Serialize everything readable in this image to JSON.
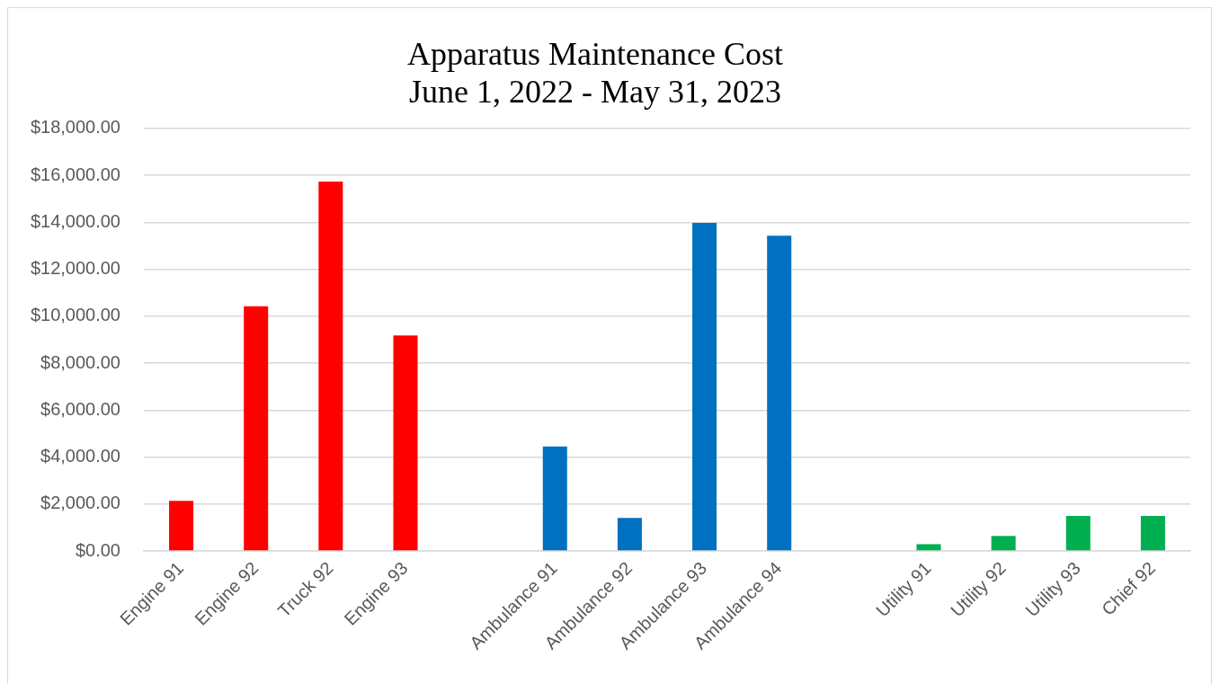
{
  "chart_data": {
    "type": "bar",
    "title": "Apparatus Maintenance Cost",
    "subtitle": "June 1, 2022 - May 31, 2023",
    "categories": [
      "Engine 91",
      "Engine 92",
      "Truck 92",
      "Engine 93",
      null,
      "Ambulance 91",
      "Ambulance 92",
      "Ambulance 93",
      "Ambulance 94",
      null,
      "Utility 91",
      "Utility 92",
      "Utility 93",
      "Chief 92"
    ],
    "values": [
      2130,
      10420,
      15730,
      9180,
      null,
      4450,
      1410,
      13970,
      13430,
      null,
      290,
      640,
      1490,
      1490
    ],
    "colors": [
      "#ff0000",
      "#ff0000",
      "#ff0000",
      "#ff0000",
      null,
      "#0070c0",
      "#0070c0",
      "#0070c0",
      "#0070c0",
      null,
      "#00b050",
      "#00b050",
      "#00b050",
      "#00b050"
    ],
    "ylim": [
      0,
      18000
    ],
    "yticks": [
      {
        "value": 0,
        "label": "$0.00"
      },
      {
        "value": 2000,
        "label": "$2,000.00"
      },
      {
        "value": 4000,
        "label": "$4,000.00"
      },
      {
        "value": 6000,
        "label": "$6,000.00"
      },
      {
        "value": 8000,
        "label": "$8,000.00"
      },
      {
        "value": 10000,
        "label": "$10,000.00"
      },
      {
        "value": 12000,
        "label": "$12,000.00"
      },
      {
        "value": 14000,
        "label": "$14,000.00"
      },
      {
        "value": 16000,
        "label": "$16,000.00"
      },
      {
        "value": 18000,
        "label": "$18,000.00"
      }
    ],
    "grid": "y"
  }
}
